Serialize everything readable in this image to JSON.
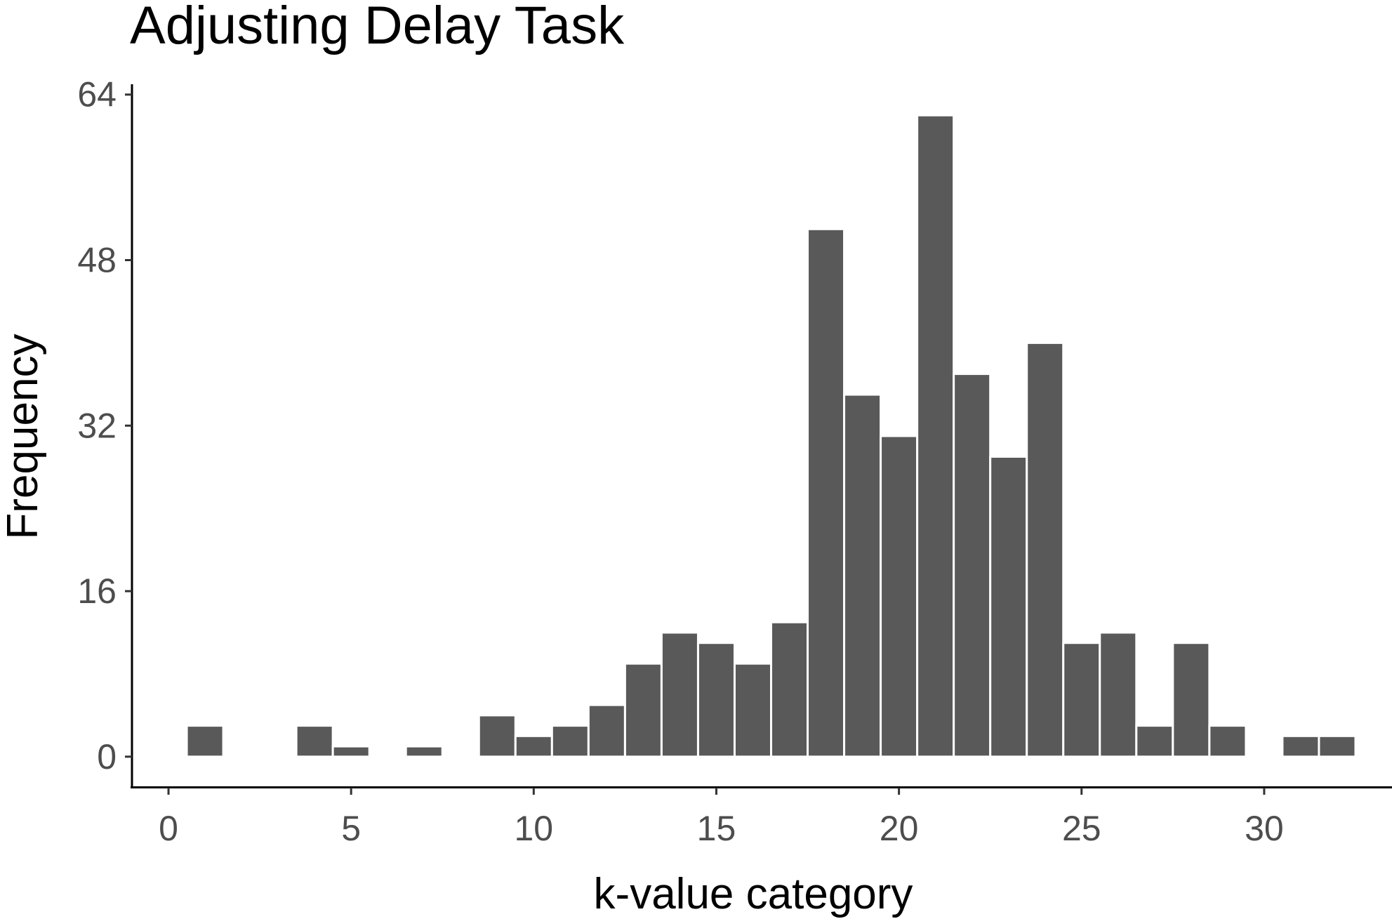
{
  "chart_data": {
    "type": "bar",
    "title": "Adjusting Delay Task",
    "xlabel": "k-value category",
    "ylabel": "Frequency",
    "bar_color": "#595959",
    "grid": false,
    "xlim": [
      -1,
      33.5
    ],
    "ylim": [
      -3,
      65
    ],
    "xticks": [
      0,
      5,
      10,
      15,
      20,
      25,
      30
    ],
    "yticks": [
      0,
      16,
      32,
      48,
      64
    ],
    "bin_width": 1,
    "x": [
      1,
      4,
      5,
      7,
      9,
      10,
      11,
      12,
      13,
      14,
      15,
      16,
      17,
      18,
      19,
      20,
      21,
      22,
      23,
      24,
      25,
      26,
      27,
      28,
      29,
      31,
      32
    ],
    "values": [
      3,
      3,
      1,
      1,
      4,
      2,
      3,
      5,
      9,
      12,
      11,
      9,
      13,
      51,
      35,
      31,
      62,
      37,
      29,
      40,
      11,
      12,
      3,
      11,
      3,
      2,
      2
    ]
  }
}
